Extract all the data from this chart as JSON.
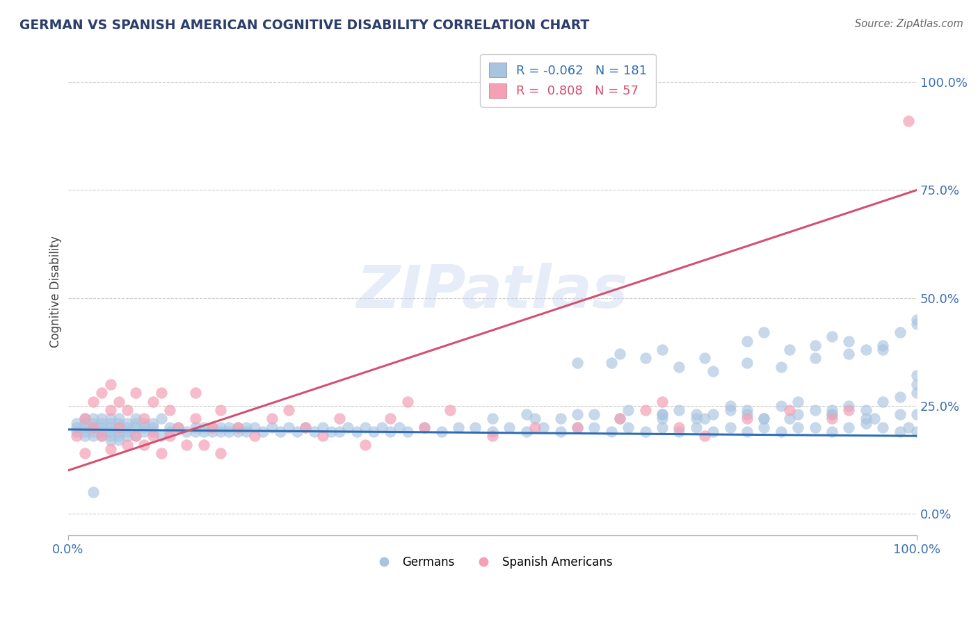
{
  "title": "GERMAN VS SPANISH AMERICAN COGNITIVE DISABILITY CORRELATION CHART",
  "source_text": "Source: ZipAtlas.com",
  "ylabel": "Cognitive Disability",
  "xlim": [
    0,
    100
  ],
  "ylim": [
    -5,
    108
  ],
  "ytick_labels": [
    "0.0%",
    "25.0%",
    "50.0%",
    "75.0%",
    "100.0%"
  ],
  "ytick_values": [
    0,
    25,
    50,
    75,
    100
  ],
  "xtick_labels": [
    "0.0%",
    "100.0%"
  ],
  "xtick_values": [
    0,
    100
  ],
  "legend_r_blue": "R = -0.062",
  "legend_n_blue": "N = 181",
  "legend_r_pink": "R =  0.808",
  "legend_n_pink": "N = 57",
  "blue_scatter_color": "#a8c4e0",
  "pink_scatter_color": "#f4a0b5",
  "blue_line_color": "#2e6db4",
  "pink_line_color": "#d45070",
  "blue_line_intercept": 19.5,
  "blue_line_slope": -0.015,
  "pink_line_intercept": 10.0,
  "pink_line_slope": 0.65,
  "watermark_text": "ZIPatlas",
  "background_color": "#ffffff",
  "grid_color": "#cccccc",
  "title_color": "#2c3e6b",
  "axis_tick_color": "#3a6fb5",
  "blue_scatter_x": [
    1,
    1,
    1,
    2,
    2,
    2,
    2,
    2,
    3,
    3,
    3,
    3,
    3,
    4,
    4,
    4,
    4,
    4,
    5,
    5,
    5,
    5,
    5,
    5,
    6,
    6,
    6,
    6,
    6,
    6,
    7,
    7,
    7,
    7,
    8,
    8,
    8,
    8,
    9,
    9,
    9,
    10,
    10,
    10,
    11,
    11,
    12,
    12,
    13,
    14,
    15,
    15,
    16,
    16,
    17,
    17,
    18,
    18,
    19,
    19,
    20,
    20,
    21,
    21,
    22,
    23,
    24,
    25,
    26,
    27,
    28,
    29,
    30,
    31,
    32,
    33,
    34,
    35,
    36,
    37,
    38,
    39,
    40,
    42,
    44,
    46,
    48,
    50,
    52,
    54,
    56,
    58,
    60,
    62,
    64,
    66,
    68,
    70,
    72,
    74,
    76,
    78,
    80,
    82,
    84,
    86,
    88,
    90,
    92,
    94,
    96,
    98,
    99,
    100,
    60,
    65,
    70,
    75,
    80,
    82,
    85,
    88,
    90,
    92,
    94,
    96,
    98,
    100,
    70,
    72,
    74,
    76,
    78,
    80,
    82,
    84,
    86,
    88,
    90,
    92,
    94,
    96,
    98,
    100,
    100,
    100,
    64,
    68,
    72,
    76,
    80,
    84,
    88,
    92,
    96,
    100,
    50,
    54,
    58,
    62,
    66,
    70,
    74,
    78,
    82,
    86,
    90,
    94,
    98,
    55,
    60,
    65,
    70,
    75,
    80,
    85,
    90,
    95,
    100,
    3
  ],
  "blue_scatter_y": [
    20,
    19,
    21,
    19,
    20,
    21,
    18,
    22,
    19,
    20,
    21,
    18,
    22,
    19,
    20,
    21,
    18,
    22,
    19,
    20,
    21,
    18,
    22,
    17,
    19,
    20,
    21,
    18,
    22,
    17,
    19,
    20,
    21,
    18,
    20,
    21,
    18,
    22,
    19,
    20,
    21,
    19,
    20,
    21,
    18,
    22,
    19,
    20,
    20,
    19,
    20,
    19,
    20,
    19,
    20,
    19,
    20,
    19,
    20,
    19,
    20,
    19,
    19,
    20,
    20,
    19,
    20,
    19,
    20,
    19,
    20,
    19,
    20,
    19,
    19,
    20,
    19,
    20,
    19,
    20,
    19,
    20,
    19,
    20,
    19,
    20,
    20,
    19,
    20,
    19,
    20,
    19,
    20,
    20,
    19,
    20,
    19,
    20,
    19,
    20,
    19,
    20,
    19,
    20,
    19,
    20,
    20,
    19,
    20,
    21,
    20,
    19,
    20,
    19,
    35,
    37,
    38,
    36,
    40,
    42,
    38,
    39,
    41,
    40,
    38,
    39,
    42,
    44,
    23,
    24,
    22,
    23,
    25,
    24,
    22,
    25,
    26,
    24,
    23,
    25,
    24,
    26,
    27,
    28,
    30,
    32,
    35,
    36,
    34,
    33,
    35,
    34,
    36,
    37,
    38,
    45,
    22,
    23,
    22,
    23,
    24,
    22,
    23,
    24,
    22,
    23,
    24,
    22,
    23,
    22,
    23,
    22,
    23,
    22,
    23,
    22,
    23,
    22,
    23,
    5
  ],
  "pink_scatter_x": [
    1,
    2,
    2,
    3,
    3,
    4,
    4,
    5,
    5,
    5,
    6,
    6,
    7,
    7,
    8,
    8,
    9,
    9,
    10,
    10,
    11,
    11,
    12,
    12,
    13,
    14,
    15,
    15,
    16,
    17,
    18,
    18,
    20,
    22,
    24,
    26,
    28,
    30,
    32,
    35,
    38,
    40,
    42,
    45,
    50,
    55,
    60,
    65,
    68,
    70,
    72,
    75,
    80,
    85,
    90,
    92,
    99
  ],
  "pink_scatter_y": [
    18,
    14,
    22,
    20,
    26,
    18,
    28,
    15,
    24,
    30,
    20,
    26,
    16,
    24,
    18,
    28,
    22,
    16,
    18,
    26,
    14,
    28,
    18,
    24,
    20,
    16,
    22,
    28,
    16,
    20,
    24,
    14,
    20,
    18,
    22,
    24,
    20,
    18,
    22,
    16,
    22,
    26,
    20,
    24,
    18,
    20,
    20,
    22,
    24,
    26,
    20,
    18,
    22,
    24,
    22,
    24,
    91
  ]
}
